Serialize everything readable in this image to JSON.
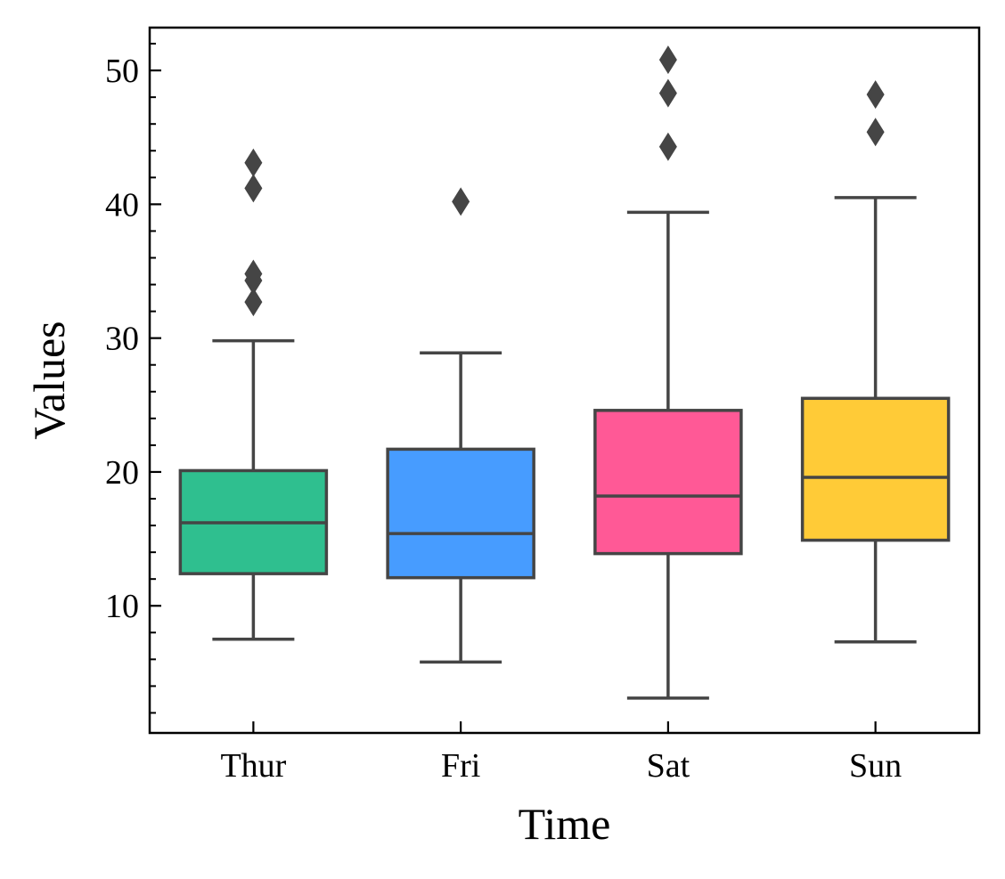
{
  "chart_data": {
    "type": "box",
    "title": "",
    "xlabel": "Time",
    "ylabel": "Values",
    "ylim": [
      0.5,
      53.2
    ],
    "yticks": [
      10,
      20,
      30,
      40,
      50
    ],
    "ytick_labels": [
      "10",
      "20",
      "30",
      "40",
      "50"
    ],
    "y_minor_step": 2,
    "categories": [
      "Thur",
      "Fri",
      "Sat",
      "Sun"
    ],
    "boxes": [
      {
        "category": "Thur",
        "whisker_low": 7.5,
        "q1": 12.4,
        "median": 16.2,
        "q3": 20.1,
        "whisker_high": 29.8,
        "outliers": [
          32.7,
          34.3,
          34.8,
          41.2,
          43.1
        ],
        "color": "#2fbf8f"
      },
      {
        "category": "Fri",
        "whisker_low": 5.8,
        "q1": 12.1,
        "median": 15.4,
        "q3": 21.7,
        "whisker_high": 28.9,
        "outliers": [
          40.2
        ],
        "color": "#479cff"
      },
      {
        "category": "Sat",
        "whisker_low": 3.1,
        "q1": 13.9,
        "median": 18.2,
        "q3": 24.6,
        "whisker_high": 39.4,
        "outliers": [
          44.3,
          48.3,
          50.8
        ],
        "color": "#ff5996"
      },
      {
        "category": "Sun",
        "whisker_low": 7.3,
        "q1": 14.9,
        "median": 19.6,
        "q3": 25.5,
        "whisker_high": 40.5,
        "outliers": [
          45.4,
          48.2
        ],
        "color": "#ffcb37"
      }
    ],
    "line_color": "#454545",
    "grid": false,
    "legend": false,
    "tick_direction": "in"
  }
}
